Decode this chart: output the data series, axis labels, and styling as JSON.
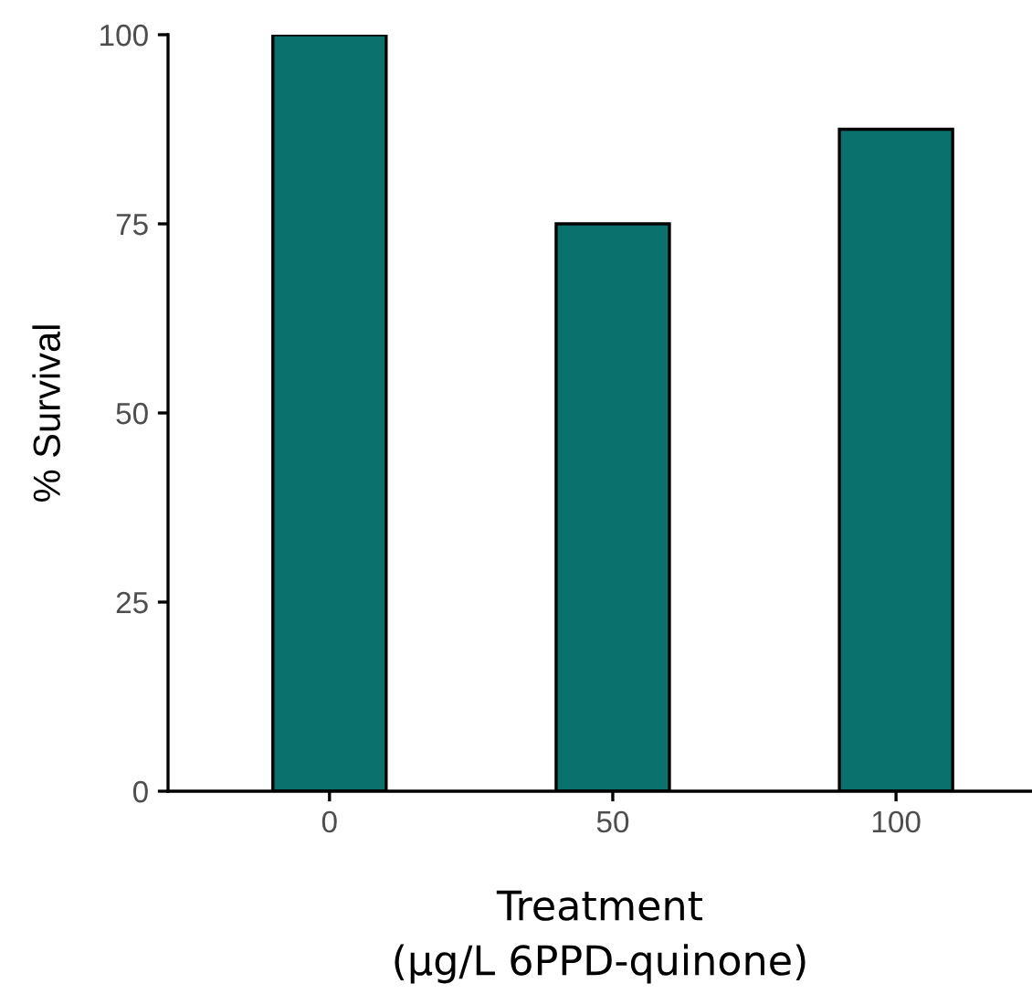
{
  "chart_data": {
    "type": "bar",
    "xlabel": "Treatment\n(µg/L 6PPD-quinone)",
    "ylabel": "% Survival",
    "categories": [
      "0",
      "50",
      "100"
    ],
    "values": [
      100,
      75,
      87.5
    ],
    "color": "#0b716c",
    "ylim": [
      0,
      100
    ],
    "yticks": [
      0,
      25,
      50,
      75,
      100
    ],
    "grid": false,
    "legend": false
  }
}
